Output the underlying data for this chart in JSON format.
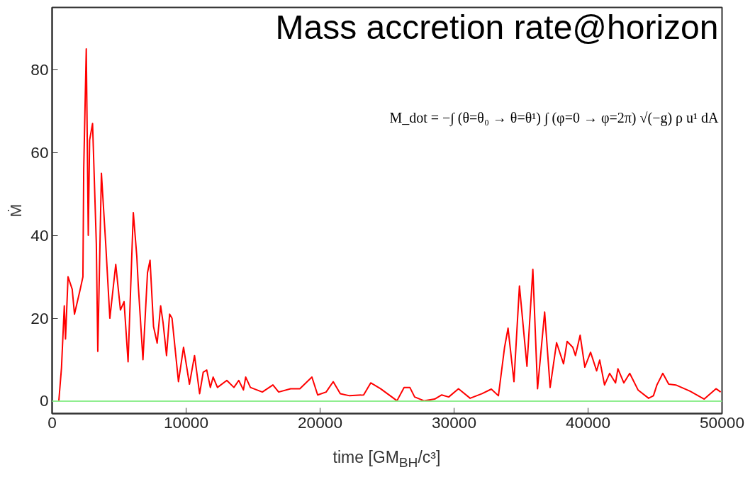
{
  "chart_data": {
    "type": "line",
    "title": "Mass accretion rate@horizon",
    "xlabel": "time [GM$_{BH}$/c³]",
    "ylabel": "Ṁ",
    "annotations": [
      "M_dot = −∫ (θ=θ₀ → θ=θ¹) ∫ (φ=0 → φ=2π) √(−g) ρ u¹ dA"
    ],
    "xlim": [
      0,
      50000
    ],
    "ylim": [
      -3,
      95
    ],
    "xticks": [
      0,
      10000,
      20000,
      30000,
      40000,
      50000
    ],
    "yticks": [
      0,
      20,
      40,
      60,
      80
    ],
    "ref_lines": [
      {
        "axis": "y",
        "value": 0,
        "color": "#90ee90"
      }
    ],
    "series": [
      {
        "color": "#ff0000",
        "x": [
          0,
          500,
          700,
          910,
          1000,
          1190,
          1500,
          1670,
          2100,
          2300,
          2360,
          2550,
          2700,
          2800,
          3020,
          3300,
          3410,
          3680,
          4000,
          4310,
          4750,
          5100,
          5370,
          5670,
          6060,
          6320,
          6430,
          6780,
          7120,
          7310,
          7570,
          7840,
          8100,
          8280,
          8540,
          8770,
          8950,
          9430,
          9810,
          10250,
          10630,
          11010,
          11280,
          11540,
          11810,
          12020,
          12340,
          13040,
          13570,
          13930,
          14280,
          14450,
          14800,
          15690,
          16480,
          16910,
          17800,
          18490,
          19390,
          19820,
          20450,
          20980,
          21510,
          22200,
          23250,
          23780,
          24510,
          25740,
          26270,
          26700,
          27060,
          27750,
          28550,
          29080,
          29600,
          30330,
          31200,
          32090,
          32780,
          33310,
          33770,
          34030,
          34470,
          34880,
          35440,
          35880,
          36230,
          36760,
          37170,
          37650,
          38170,
          38440,
          38860,
          39060,
          39410,
          39760,
          40190,
          40640,
          40870,
          41230,
          41610,
          42050,
          42230,
          42670,
          43110,
          43730,
          44520,
          44880,
          45140,
          45580,
          46020,
          46550,
          47610,
          48670,
          49550,
          49900
        ],
        "values": [
          0,
          0,
          8,
          23,
          15,
          30,
          27,
          21,
          27,
          30,
          56,
          85,
          40,
          63,
          67,
          38,
          12,
          55,
          38,
          20,
          33,
          22,
          24,
          9.5,
          45.5,
          35,
          28,
          10,
          31,
          34,
          18,
          14,
          23,
          19,
          11,
          21,
          20,
          4.7,
          13,
          4.1,
          11,
          1.8,
          7,
          7.5,
          3.3,
          5.8,
          3.3,
          5,
          3.3,
          5,
          2.7,
          5.8,
          3.3,
          2.2,
          3.9,
          2.2,
          3,
          3,
          5.8,
          1.5,
          2.2,
          4.7,
          1.8,
          1.3,
          1.5,
          4.4,
          3,
          0.1,
          3.3,
          3.3,
          1,
          0.1,
          0.5,
          1.5,
          1,
          3,
          0.7,
          1.8,
          2.9,
          1.3,
          13,
          17.6,
          4.7,
          27.8,
          8.4,
          31.8,
          3,
          21.5,
          3.3,
          14.1,
          9,
          14.4,
          13,
          11,
          15.9,
          8.2,
          11.8,
          7.3,
          9.9,
          3.9,
          6.7,
          4.4,
          7.8,
          4.4,
          6.7,
          2.7,
          0.7,
          1.3,
          3.9,
          6.7,
          4.1,
          3.9,
          2.4,
          0.5,
          3,
          2.2
        ]
      }
    ]
  }
}
